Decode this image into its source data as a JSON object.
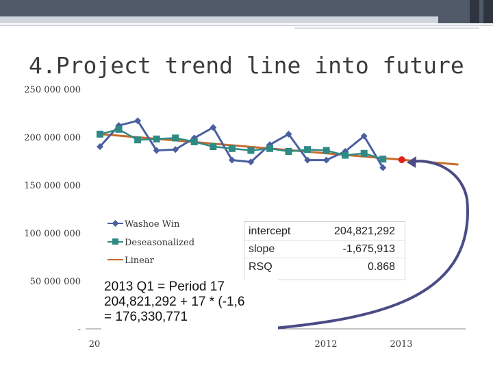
{
  "slide": {
    "title": "4.Project trend line into future"
  },
  "stats": {
    "rows": [
      {
        "label": "intercept",
        "value": "204,821,292"
      },
      {
        "label": "slope",
        "value": "-1,675,913"
      },
      {
        "label": "RSQ",
        "value": "0.868"
      }
    ]
  },
  "note": {
    "line1": "2013 Q1 = Period 17",
    "line2": "204,821,292 + 17 * (-1,6",
    "line3": "= 176,330,771"
  },
  "colors": {
    "washoe": "#4a5fa0",
    "deseasonalized": "#2f8a84",
    "linear": "#c86a2c",
    "forecast_point": "#e0201b",
    "arrow": "#4b4c86"
  },
  "chart_data": {
    "type": "line",
    "ylim": [
      0,
      250000000
    ],
    "y_ticks": [
      "250 000 000",
      "200 000 000",
      "150 000 000",
      "100 000 000",
      "50 000 000",
      "-"
    ],
    "x_tick_labels": [
      "20",
      "2012",
      "2013"
    ],
    "x_periods": [
      1,
      2,
      3,
      4,
      5,
      6,
      7,
      8,
      9,
      10,
      11,
      12,
      13,
      14,
      15,
      16
    ],
    "series": [
      {
        "name": "Washoe Win",
        "marker": "diamond",
        "values": [
          190000000,
          212000000,
          217000000,
          186000000,
          187000000,
          199000000,
          210000000,
          176000000,
          174000000,
          192000000,
          203000000,
          176000000,
          176000000,
          185000000,
          201000000,
          168000000
        ]
      },
      {
        "name": "Deseasonalized",
        "marker": "square",
        "values": [
          203000000,
          208000000,
          197000000,
          198000000,
          199000000,
          195000000,
          190000000,
          188000000,
          186000000,
          188000000,
          185000000,
          187000000,
          186000000,
          181000000,
          183000000,
          177000000
        ]
      },
      {
        "name": "Linear",
        "marker": "none",
        "line_start": [
          1,
          203145379
        ],
        "line_end": [
          20,
          171303032
        ]
      }
    ],
    "forecast": {
      "period": 17,
      "value": 176330771
    }
  }
}
